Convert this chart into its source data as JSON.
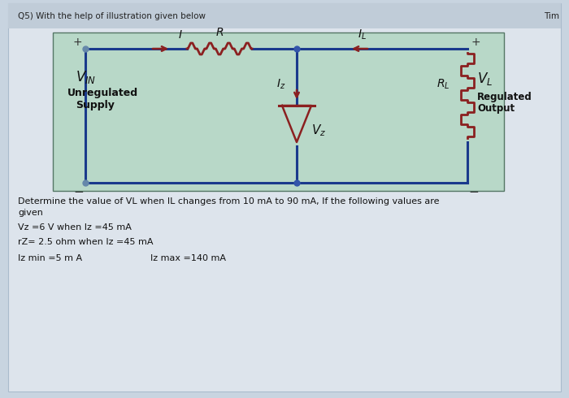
{
  "title": "Q5) With the help of illustration given below",
  "timer_text": "Tim",
  "outer_bg": "#c8d4e0",
  "page_bg": "#dde4ec",
  "header_bg": "#c0ccd8",
  "circuit_bg": "#b8d8c8",
  "line_color": "#1a3a8c",
  "component_color": "#8b2020",
  "arrow_color": "#8b2020",
  "text_color": "#111111",
  "dot_color": "#3355aa",
  "left_dot_color": "#888844",
  "problem_lines": [
    "Determine the value of VL when IL changes from 10 mA to 90 mA, If the following values are",
    "given",
    "",
    "Vz =6 V when Iz =45 mA",
    "",
    "rZ= 2.5 ohm when Iz =45 mA",
    "",
    "Iz min =5 m A                    Iz max =140 mA"
  ]
}
